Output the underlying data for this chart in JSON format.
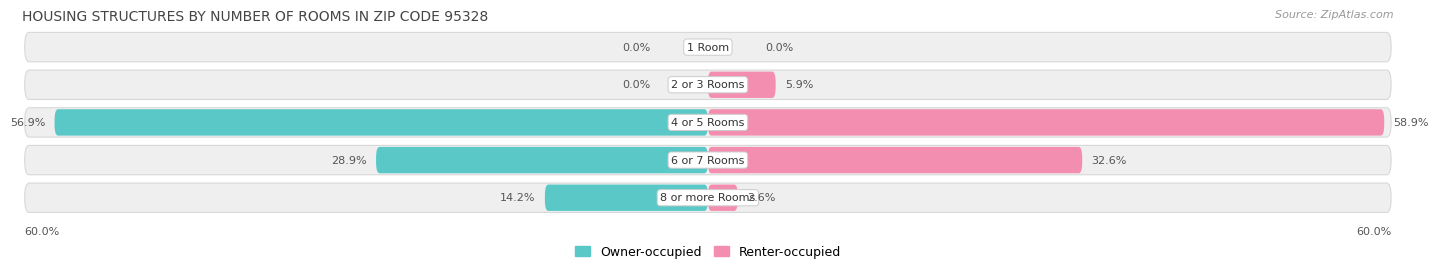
{
  "title": "HOUSING STRUCTURES BY NUMBER OF ROOMS IN ZIP CODE 95328",
  "source": "Source: ZipAtlas.com",
  "categories": [
    "1 Room",
    "2 or 3 Rooms",
    "4 or 5 Rooms",
    "6 or 7 Rooms",
    "8 or more Rooms"
  ],
  "owner_values": [
    0.0,
    0.0,
    56.9,
    28.9,
    14.2
  ],
  "renter_values": [
    0.0,
    5.9,
    58.9,
    32.6,
    2.6
  ],
  "max_scale": 60.0,
  "owner_color": "#5BC8C8",
  "renter_color": "#F48EB1",
  "bar_bg_color": "#EFEFEF",
  "bar_border_color": "#D8D8D8",
  "title_fontsize": 10,
  "source_fontsize": 8,
  "value_fontsize": 8,
  "cat_label_fontsize": 8,
  "legend_fontsize": 9,
  "bottom_label": "60.0%"
}
